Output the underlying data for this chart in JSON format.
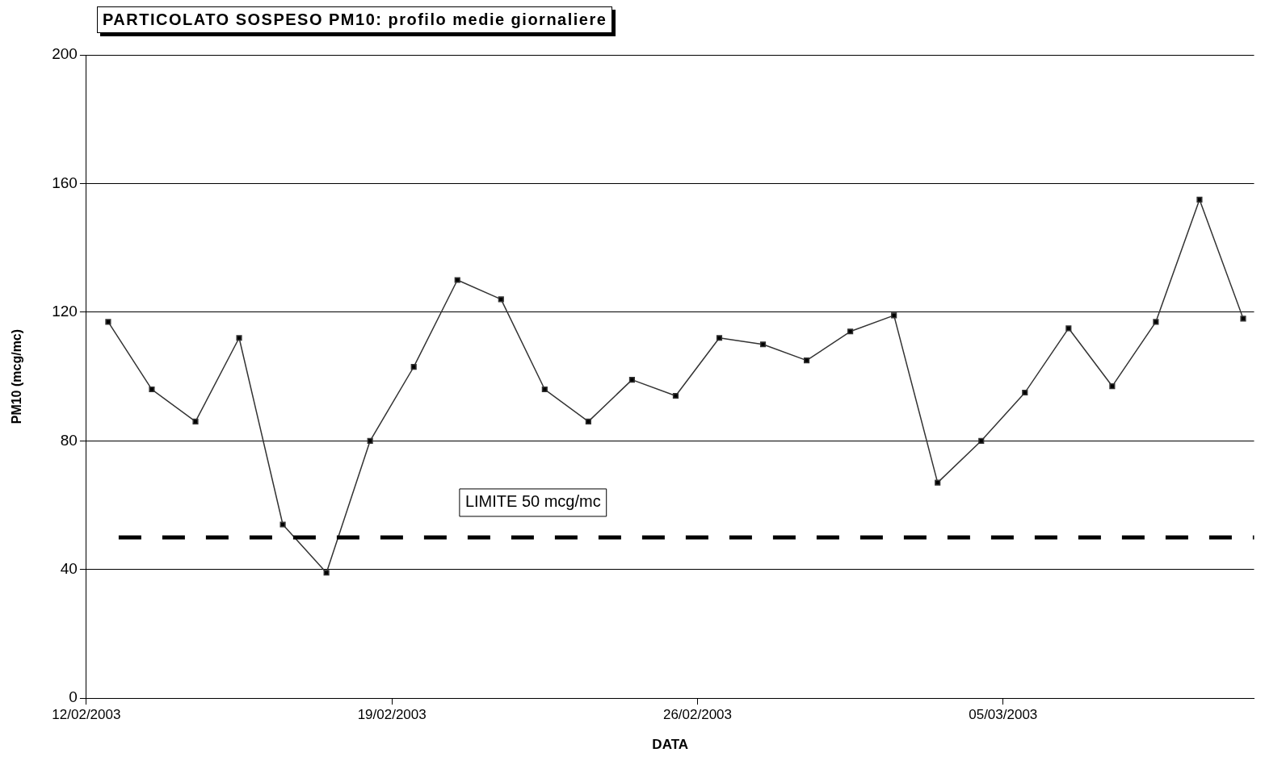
{
  "chart_data": {
    "type": "line",
    "title": "PARTICOLATO SOSPESO PM10: profilo medie giornaliere",
    "xlabel": "DATA",
    "ylabel": "PM10 (mcg/mc)",
    "x": [
      "2003-02-12T12:00",
      "2003-02-13T12:00",
      "2003-02-14T12:00",
      "2003-02-15T12:00",
      "2003-02-16T12:00",
      "2003-02-17T12:00",
      "2003-02-18T12:00",
      "2003-02-19T12:00",
      "2003-02-20T12:00",
      "2003-02-21T12:00",
      "2003-02-22T12:00",
      "2003-02-23T12:00",
      "2003-02-24T12:00",
      "2003-02-25T12:00",
      "2003-02-26T12:00",
      "2003-02-27T12:00",
      "2003-02-28T12:00",
      "2003-03-01T12:00",
      "2003-03-02T12:00",
      "2003-03-03T12:00",
      "2003-03-04T12:00",
      "2003-03-05T12:00",
      "2003-03-06T12:00",
      "2003-03-07T12:00",
      "2003-03-08T12:00",
      "2003-03-09T12:00",
      "2003-03-10T12:00"
    ],
    "series": [
      {
        "color": "#333333",
        "values": [
          117,
          96,
          86,
          112,
          54,
          39,
          80,
          103,
          130,
          124,
          96,
          86,
          99,
          94,
          112,
          110,
          105,
          114,
          119,
          67,
          80,
          95,
          115,
          97,
          117,
          155,
          118
        ]
      }
    ],
    "xlim": [
      "2003-02-12",
      "2003-03-10T18:00"
    ],
    "xticks": [
      {
        "value": "2003-02-12",
        "label": "12/02/2003"
      },
      {
        "value": "2003-02-19",
        "label": "19/02/2003"
      },
      {
        "value": "2003-02-26",
        "label": "26/02/2003"
      },
      {
        "value": "2003-03-05",
        "label": "05/03/2003"
      }
    ],
    "ylim": [
      0,
      200
    ],
    "yticks": [
      0,
      40,
      80,
      120,
      160,
      200
    ],
    "grid": "y",
    "marker": "square",
    "line_style": "solid",
    "legend": false,
    "ref_lines": [
      {
        "axis": "y",
        "value": 50,
        "label": "LIMITE 50 mcg/mc",
        "color": "#000000",
        "line_style": "dashed"
      }
    ]
  }
}
